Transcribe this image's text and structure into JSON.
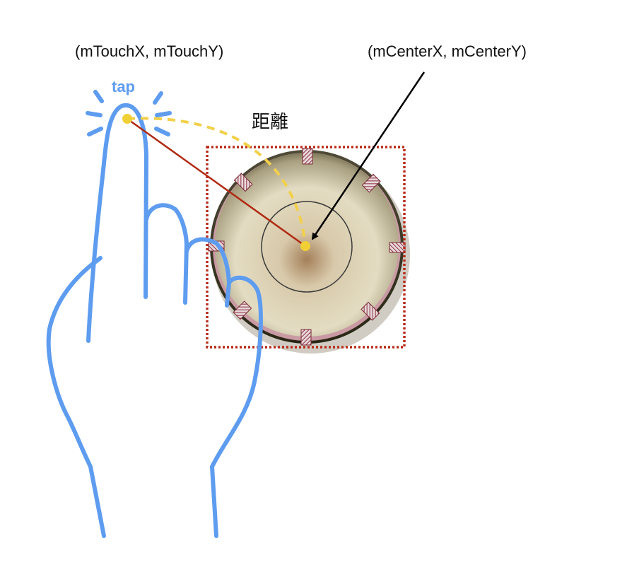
{
  "labels": {
    "touch_point": "(mTouchX, mTouchY)",
    "center_point": "(mCenterX, mCenterY)",
    "distance": "距離",
    "tap": "tap"
  },
  "colors": {
    "hand_outline": "#5e9cf0",
    "tap_text": "#5e9cf0",
    "point": "#f0d034",
    "arc": "#f2d04a",
    "radius_line": "#b02a14",
    "bounding_box": "#b82a1a",
    "pointer_arrow": "#000000"
  },
  "icons": {
    "hand": "hand-pointing-icon",
    "dial": "knob-dial-icon"
  }
}
